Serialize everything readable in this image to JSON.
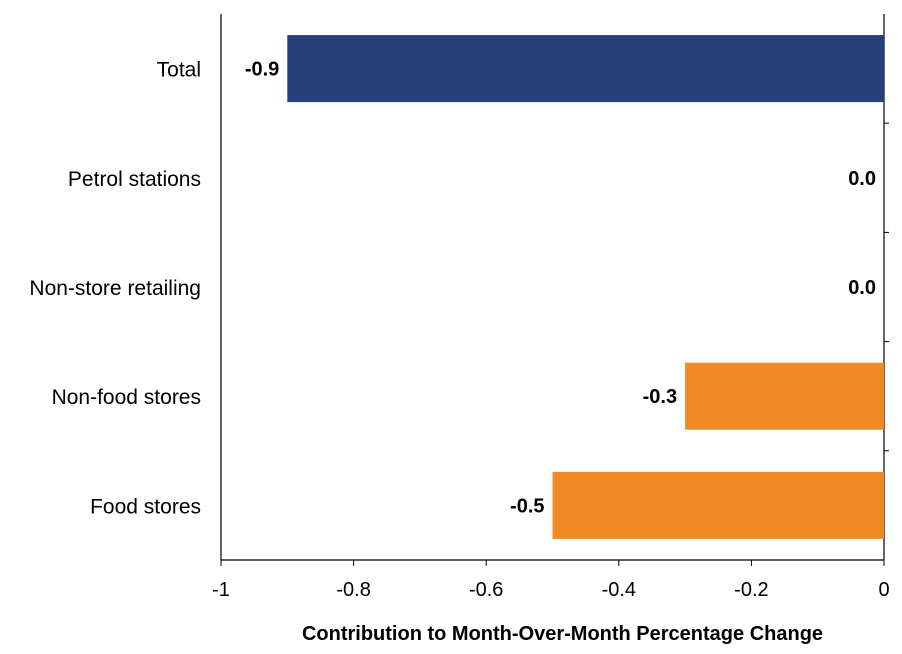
{
  "chart_data": {
    "type": "bar",
    "orientation": "horizontal",
    "categories": [
      "Total",
      "Petrol stations",
      "Non-store retailing",
      "Non-food stores",
      "Food stores"
    ],
    "values": [
      -0.9,
      0.0,
      0.0,
      -0.3,
      -0.5
    ],
    "data_labels": [
      "-0.9",
      "0.0",
      "0.0",
      "-0.3",
      "-0.5"
    ],
    "bar_colors": [
      "#243F7A",
      "#F08A24",
      "#F08A24",
      "#F08A24",
      "#F08A24"
    ],
    "xlabel": "Contribution to Month-Over-Month Percentage Change",
    "xlim": [
      -1,
      0
    ],
    "xticks": [
      -1,
      -0.8,
      -0.6,
      -0.4,
      -0.2,
      0
    ],
    "xtick_labels": [
      "-1",
      "-0.8",
      "-0.6",
      "-0.4",
      "-0.2",
      "0"
    ],
    "grid": false,
    "legend": "none"
  }
}
